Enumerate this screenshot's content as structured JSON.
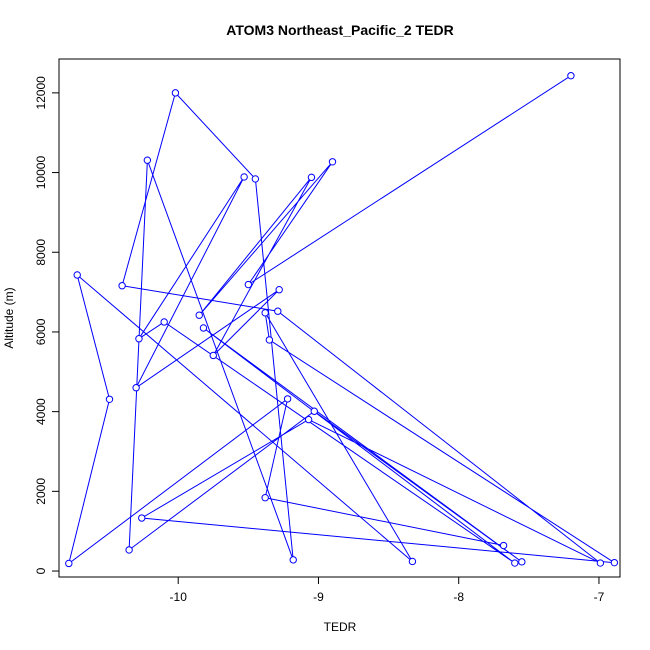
{
  "chart_data": {
    "type": "line",
    "title": "ATOM3 Northeast_Pacific_2 TEDR",
    "xlabel": "TEDR",
    "ylabel": "Altitude (m)",
    "xlim": [
      -10.85,
      -6.85
    ],
    "ylim": [
      -150,
      12850
    ],
    "x_ticks": [
      -10,
      -9,
      -8,
      -7
    ],
    "x_tick_labels": [
      "-10",
      "-9",
      "-8",
      "-7"
    ],
    "y_ticks": [
      0,
      2000,
      4000,
      6000,
      8000,
      10000,
      12000
    ],
    "y_tick_labels": [
      "0",
      "2000",
      "4000",
      "6000",
      "8000",
      "10000",
      "12000"
    ],
    "grid": false,
    "series_color": "#0000ff",
    "marker": "open-circle",
    "series": [
      {
        "x": [
          -7.2,
          -9.5,
          -8.9,
          -9.85,
          -9.05,
          -9.75,
          -9.28,
          -10.3,
          -9.53,
          -10.28,
          -10.1,
          -7.6,
          -9.82,
          -7.55,
          -9.03,
          -10.35,
          -10.22,
          -9.18,
          -9.45,
          -10.02,
          -10.4,
          -9.29,
          -6.99,
          -9.07,
          -10.26,
          -6.89,
          -9.35,
          -9.38,
          -8.33,
          -10.72,
          -10.49,
          -10.78,
          -9.22,
          -9.38,
          -7.68
        ],
        "y": [
          12430,
          7190,
          10270,
          6420,
          9880,
          5410,
          7060,
          4600,
          9890,
          5830,
          6250,
          200,
          6100,
          230,
          4010,
          530,
          10310,
          280,
          9840,
          12000,
          7160,
          6520,
          200,
          3800,
          1330,
          210,
          5800,
          6480,
          240,
          7430,
          4310,
          190,
          4320,
          1840,
          640
        ]
      }
    ]
  }
}
